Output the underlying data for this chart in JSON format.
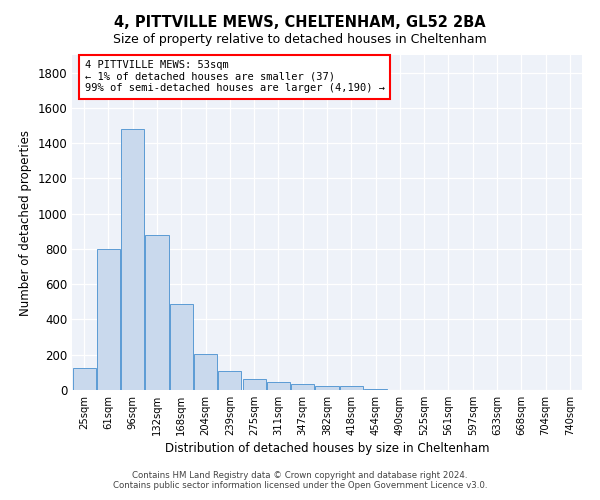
{
  "title": "4, PITTVILLE MEWS, CHELTENHAM, GL52 2BA",
  "subtitle": "Size of property relative to detached houses in Cheltenham",
  "xlabel": "Distribution of detached houses by size in Cheltenham",
  "ylabel": "Number of detached properties",
  "bar_color": "#c9d9ed",
  "bar_edge_color": "#5b9bd5",
  "background_color": "#eef2f9",
  "categories": [
    "25sqm",
    "61sqm",
    "96sqm",
    "132sqm",
    "168sqm",
    "204sqm",
    "239sqm",
    "275sqm",
    "311sqm",
    "347sqm",
    "382sqm",
    "418sqm",
    "454sqm",
    "490sqm",
    "525sqm",
    "561sqm",
    "597sqm",
    "633sqm",
    "668sqm",
    "704sqm",
    "740sqm"
  ],
  "values": [
    125,
    800,
    1480,
    880,
    490,
    205,
    105,
    65,
    45,
    35,
    25,
    20,
    5,
    2,
    2,
    2,
    2,
    2,
    2,
    2,
    2
  ],
  "ylim": [
    0,
    1900
  ],
  "yticks": [
    0,
    200,
    400,
    600,
    800,
    1000,
    1200,
    1400,
    1600,
    1800
  ],
  "annotation_text": "4 PITTVILLE MEWS: 53sqm\n← 1% of detached houses are smaller (37)\n99% of semi-detached houses are larger (4,190) →",
  "footer_line1": "Contains HM Land Registry data © Crown copyright and database right 2024.",
  "footer_line2": "Contains public sector information licensed under the Open Government Licence v3.0."
}
